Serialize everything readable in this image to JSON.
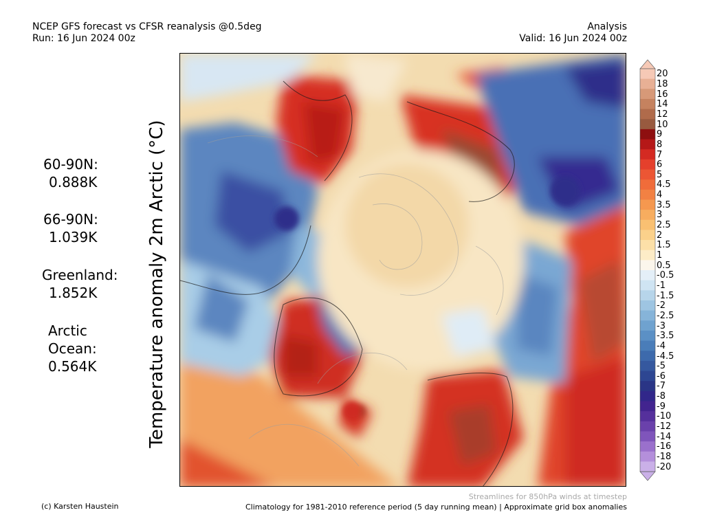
{
  "header": {
    "title_line1": "NCEP GFS forecast vs CFSR reanalysis @0.5deg",
    "title_line2": "Run: 16 Jun 2024 00z",
    "right_line1": "Analysis",
    "right_line2": "Valid: 16 Jun 2024 00z"
  },
  "axis_label": "Temperature anomaly 2m Arctic (°C)",
  "stats": [
    {
      "label": "60-90N:",
      "value": "0.888K"
    },
    {
      "label": "66-90N:",
      "value": "1.039K"
    },
    {
      "label": "Greenland:",
      "value": "1.852K"
    },
    {
      "label": "Arctic",
      "label2": "Ocean:",
      "value": "0.564K"
    }
  ],
  "colorbar": {
    "labels": [
      "20",
      "18",
      "16",
      "14",
      "12",
      "10",
      "9",
      "8",
      "7",
      "6",
      "5",
      "4.5",
      "4",
      "3.5",
      "3",
      "2.5",
      "2",
      "1.5",
      "1",
      "0.5",
      "-0.5",
      "-1",
      "-1.5",
      "-2",
      "-2.5",
      "-3",
      "-3.5",
      "-4",
      "-4.5",
      "-5",
      "-6",
      "-7",
      "-8",
      "-9",
      "-10",
      "-12",
      "-14",
      "-16",
      "-18",
      "-20"
    ],
    "colors": [
      "#f6c9b6",
      "#e8b095",
      "#d79978",
      "#c5825f",
      "#b06b4b",
      "#985a3f",
      "#8e0f10",
      "#b51818",
      "#d42a22",
      "#e5402c",
      "#ec5634",
      "#f06c3a",
      "#f28143",
      "#f5984f",
      "#f7ad5f",
      "#f9c072",
      "#fbd18b",
      "#fce0a8",
      "#fdecc7",
      "#fbf6ec",
      "#e4eff8",
      "#cfe4f3",
      "#b7d5ea",
      "#9ec5e2",
      "#86b4d9",
      "#6fa2cf",
      "#5b90c5",
      "#4a7db9",
      "#3d6aac",
      "#35589f",
      "#2d4692",
      "#2a3586",
      "#31278a",
      "#42248f",
      "#55309c",
      "#6a41ab",
      "#7f55bb",
      "#9a70cc",
      "#b48fdb",
      "#cab0e8"
    ]
  },
  "footer": {
    "credit": "(c) Karsten Haustein",
    "streamlines_note": "Streamlines for 850hPa winds at timestep",
    "climatology_note": "Climatology for 1981-2010 reference period (5 day running mean) | Approximate grid box anomalies"
  }
}
